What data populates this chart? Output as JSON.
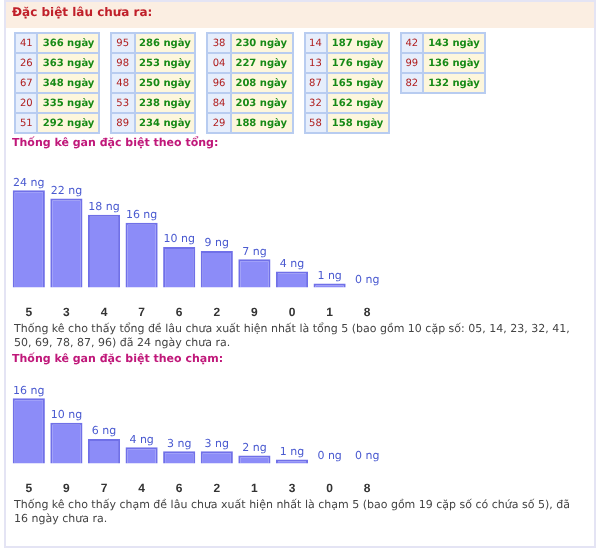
{
  "chart_data": [
    {
      "type": "other",
      "title": "Đặc biệt lâu chưa ra:",
      "annotations": [
        "41",
        "366 ngày",
        "26",
        "363 ngày",
        "67",
        "348 ngày",
        "20",
        "335 ngày",
        "51",
        "292 ngày",
        "95",
        "286 ngày",
        "98",
        "253 ngày",
        "48",
        "250 ngày",
        "53",
        "238 ngày",
        "89",
        "234 ngày",
        "38",
        "230 ngày",
        "04",
        "227 ngày",
        "96",
        "208 ngày",
        "84",
        "203 ngày",
        "29",
        "188 ngày",
        "14",
        "187 ngày",
        "13",
        "176 ngày",
        "87",
        "165 ngày",
        "32",
        "162 ngày",
        "58",
        "158 ngày",
        "42",
        "143 ngày",
        "99",
        "136 ngày",
        "82",
        "132 ngày"
      ]
    },
    {
      "type": "bar",
      "title": "Thống kê gan đặc biệt theo tổng:",
      "categories": [
        "5",
        "3",
        "4",
        "7",
        "6",
        "2",
        "9",
        "0",
        "1",
        "8"
      ],
      "values": [
        24,
        22,
        18,
        16,
        10,
        9,
        7,
        4,
        1,
        0
      ],
      "value_labels": [
        "24 ng",
        "22 ng",
        "18 ng",
        "16 ng",
        "10 ng",
        "9 ng",
        "7 ng",
        "4 ng",
        "1 ng",
        "0 ng"
      ],
      "color": "#8c8cf8",
      "annotations": [
        "Thống kê cho thấy tổng đề lâu chưa xuất hiện nhất là tổng 5 (bao gồm 10 cặp số: 05, 14, 23, 32, 41, 50, 69, 78, 87, 96) đã 24 ngày chưa ra."
      ]
    },
    {
      "type": "bar",
      "title": "Thống kê gan đặc biệt theo chạm:",
      "categories": [
        "5",
        "9",
        "7",
        "4",
        "6",
        "2",
        "1",
        "3",
        "0",
        "8"
      ],
      "values": [
        16,
        10,
        6,
        4,
        3,
        3,
        2,
        1,
        0,
        0
      ],
      "value_labels": [
        "16 ng",
        "10 ng",
        "6 ng",
        "4 ng",
        "3 ng",
        "3 ng",
        "2 ng",
        "1 ng",
        "0 ng",
        "0 ng"
      ],
      "color": "#8c8cf8",
      "annotations": [
        "Thống kê cho thấy chạm đề lâu chưa xuất hiện nhất là chạm 5 (bao gồm 19 cặp số có chứa số 5), đã 16 ngày chưa ra."
      ]
    }
  ]
}
